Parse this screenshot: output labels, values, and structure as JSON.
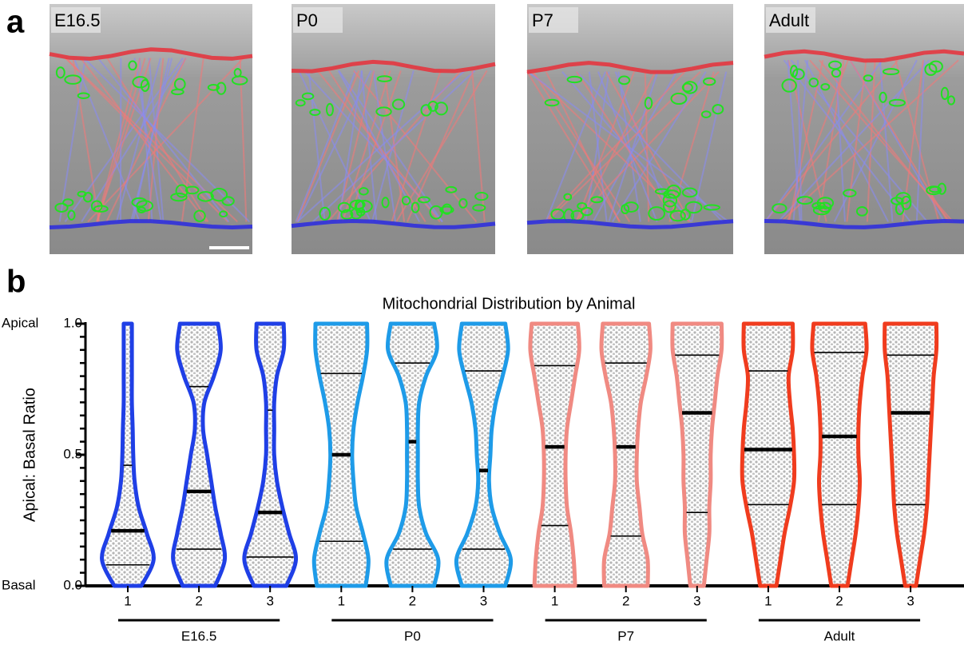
{
  "panel_a": {
    "label": "a",
    "images": [
      "E16.5",
      "P0",
      "P7",
      "Adult"
    ]
  },
  "chart_data": {
    "type": "violin",
    "panel_label": "b",
    "title": "Mitochondrial Distribution by Animal",
    "y_label": "Apical: Basal Ratio",
    "apical_label": "Apical",
    "basal_label": "Basal",
    "ylim": [
      0,
      1
    ],
    "yticks": [
      {
        "value": 0,
        "label": "0.0"
      },
      0.5,
      {
        "value": 1,
        "label": "1.0"
      }
    ],
    "yminorticks": [
      0.05,
      0.1,
      0.15,
      0.2,
      0.25,
      0.3,
      0.35,
      0.4,
      0.45,
      0.55,
      0.6,
      0.65,
      0.7,
      0.75,
      0.8,
      0.85,
      0.9,
      0.95
    ],
    "density_y": [
      0,
      0.1,
      0.2,
      0.3,
      0.4,
      0.5,
      0.6,
      0.7,
      0.8,
      0.9,
      1
    ],
    "series": [
      {
        "name": "E16.5",
        "color": "#1f3fe6",
        "categories": [
          "1",
          "2",
          "3"
        ],
        "violins": [
          {
            "q1": 0.08,
            "median": 0.21,
            "q3": 0.46,
            "density": [
              0.5,
              0.95,
              0.7,
              0.4,
              0.25,
              0.2,
              0.18,
              0.15,
              0.15,
              0.15,
              0.15
            ]
          },
          {
            "q1": 0.14,
            "median": 0.36,
            "q3": 0.76,
            "density": [
              0.6,
              0.95,
              0.8,
              0.6,
              0.45,
              0.3,
              0.15,
              0.2,
              0.55,
              0.8,
              0.7
            ]
          },
          {
            "q1": 0.11,
            "median": 0.28,
            "q3": 0.67,
            "density": [
              0.6,
              0.95,
              0.7,
              0.45,
              0.25,
              0.15,
              0.15,
              0.15,
              0.25,
              0.5,
              0.5
            ]
          }
        ]
      },
      {
        "name": "P0",
        "color": "#1e9be8",
        "categories": [
          "1",
          "2",
          "3"
        ],
        "violins": [
          {
            "q1": 0.17,
            "median": 0.5,
            "q3": 0.81,
            "density": [
              0.9,
              1,
              0.8,
              0.55,
              0.45,
              0.4,
              0.45,
              0.6,
              0.8,
              0.95,
              0.95
            ]
          },
          {
            "q1": 0.14,
            "median": 0.55,
            "q3": 0.85,
            "density": [
              0.8,
              0.95,
              0.5,
              0.25,
              0.2,
              0.2,
              0.2,
              0.25,
              0.5,
              0.9,
              0.8
            ]
          },
          {
            "q1": 0.14,
            "median": 0.44,
            "q3": 0.82,
            "density": [
              0.8,
              1,
              0.6,
              0.3,
              0.2,
              0.25,
              0.3,
              0.45,
              0.7,
              0.9,
              0.8
            ]
          }
        ]
      },
      {
        "name": "P7",
        "color": "#f08a82",
        "categories": [
          "1",
          "2",
          "3"
        ],
        "violins": [
          {
            "q1": 0.23,
            "median": 0.53,
            "q3": 0.84,
            "density": [
              0.75,
              0.7,
              0.6,
              0.45,
              0.4,
              0.4,
              0.45,
              0.6,
              0.75,
              0.9,
              0.85
            ]
          },
          {
            "q1": 0.19,
            "median": 0.53,
            "q3": 0.85,
            "density": [
              0.8,
              0.8,
              0.6,
              0.5,
              0.4,
              0.4,
              0.45,
              0.55,
              0.75,
              0.9,
              0.85
            ]
          },
          {
            "q1": 0.28,
            "median": 0.66,
            "q3": 0.88,
            "density": [
              0.25,
              0.35,
              0.45,
              0.45,
              0.5,
              0.5,
              0.55,
              0.65,
              0.75,
              0.9,
              0.9
            ]
          }
        ]
      },
      {
        "name": "Adult",
        "color": "#f03c1e",
        "categories": [
          "1",
          "2",
          "3"
        ],
        "violins": [
          {
            "q1": 0.31,
            "median": 0.52,
            "q3": 0.82,
            "density": [
              0.3,
              0.45,
              0.6,
              0.8,
              0.95,
              0.95,
              0.9,
              0.8,
              0.75,
              0.9,
              0.9
            ]
          },
          {
            "q1": 0.31,
            "median": 0.57,
            "q3": 0.89,
            "density": [
              0.3,
              0.45,
              0.6,
              0.7,
              0.75,
              0.7,
              0.7,
              0.75,
              0.85,
              1,
              0.95
            ]
          },
          {
            "q1": 0.31,
            "median": 0.66,
            "q3": 0.88,
            "density": [
              0.2,
              0.35,
              0.5,
              0.6,
              0.65,
              0.7,
              0.75,
              0.8,
              0.85,
              0.95,
              0.95
            ]
          }
        ]
      }
    ]
  }
}
